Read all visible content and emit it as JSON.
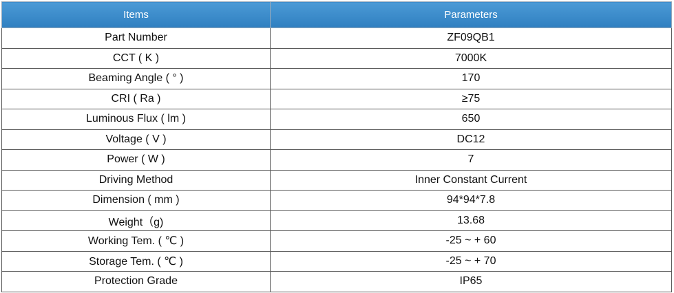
{
  "table": {
    "header": [
      "Items",
      "Parameters"
    ],
    "rows": [
      [
        "Part Number",
        "ZF09QB1"
      ],
      [
        "CCT ( K )",
        "7000K"
      ],
      [
        "Beaming Angle ( ° )",
        "170"
      ],
      [
        "CRI ( Ra )",
        "≥75"
      ],
      [
        "Luminous Flux ( lm )",
        "650"
      ],
      [
        "Voltage ( V )",
        "DC12"
      ],
      [
        "Power ( W )",
        "7"
      ],
      [
        "Driving Method",
        "Inner Constant Current"
      ],
      [
        "Dimension ( mm )",
        "94*94*7.8"
      ],
      [
        "Weight（g)",
        "13.68"
      ],
      [
        "Working Tem. ( ℃ )",
        "-25 ~ + 60"
      ],
      [
        "Storage Tem. ( ℃ )",
        "-25 ~ + 70"
      ],
      [
        "Protection Grade",
        "IP65"
      ]
    ]
  }
}
